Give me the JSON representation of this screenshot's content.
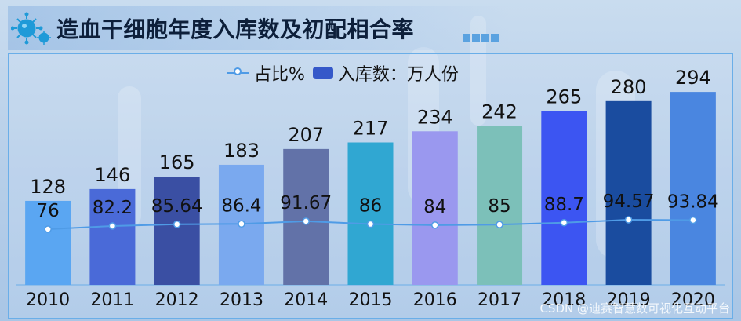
{
  "title": "造血干细胞年度入库数及初配相合率",
  "watermark": "CSDN @迪赛智慧数可视化互动平台",
  "chart_data": {
    "type": "bar",
    "title": "造血干细胞年度入库数及初配相合率",
    "categories": [
      "2010",
      "2011",
      "2012",
      "2013",
      "2014",
      "2015",
      "2016",
      "2017",
      "2018",
      "2019",
      "2020"
    ],
    "series": [
      {
        "name": "入库数：万人份",
        "type": "bar",
        "values": [
          128,
          146,
          165,
          183,
          207,
          217,
          234,
          242,
          265,
          280,
          294
        ],
        "labels": [
          "128",
          "146",
          "165",
          "183",
          "207",
          "217",
          "234",
          "242",
          "265",
          "280",
          "294"
        ],
        "colors": [
          "#5aa6f2",
          "#4a6ad8",
          "#3a4fa3",
          "#7aa9ef",
          "#6272a8",
          "#30a7d2",
          "#9a98ef",
          "#7cc0b9",
          "#3c55f2",
          "#1a4c9f",
          "#4a86e0"
        ]
      },
      {
        "name": "占比%",
        "type": "line",
        "values": [
          76,
          82.2,
          85.64,
          86.4,
          91.67,
          86,
          84,
          85,
          88.7,
          94.57,
          93.84
        ],
        "labels": [
          "76",
          "82.2",
          "85.64",
          "86.4",
          "91.67",
          "86",
          "84",
          "85",
          "88.7",
          "94.57",
          "93.84"
        ],
        "color": "#4f9be6"
      }
    ],
    "ylim_bar": [
      0,
      330
    ],
    "legend_position": "top-center",
    "grid": false
  }
}
